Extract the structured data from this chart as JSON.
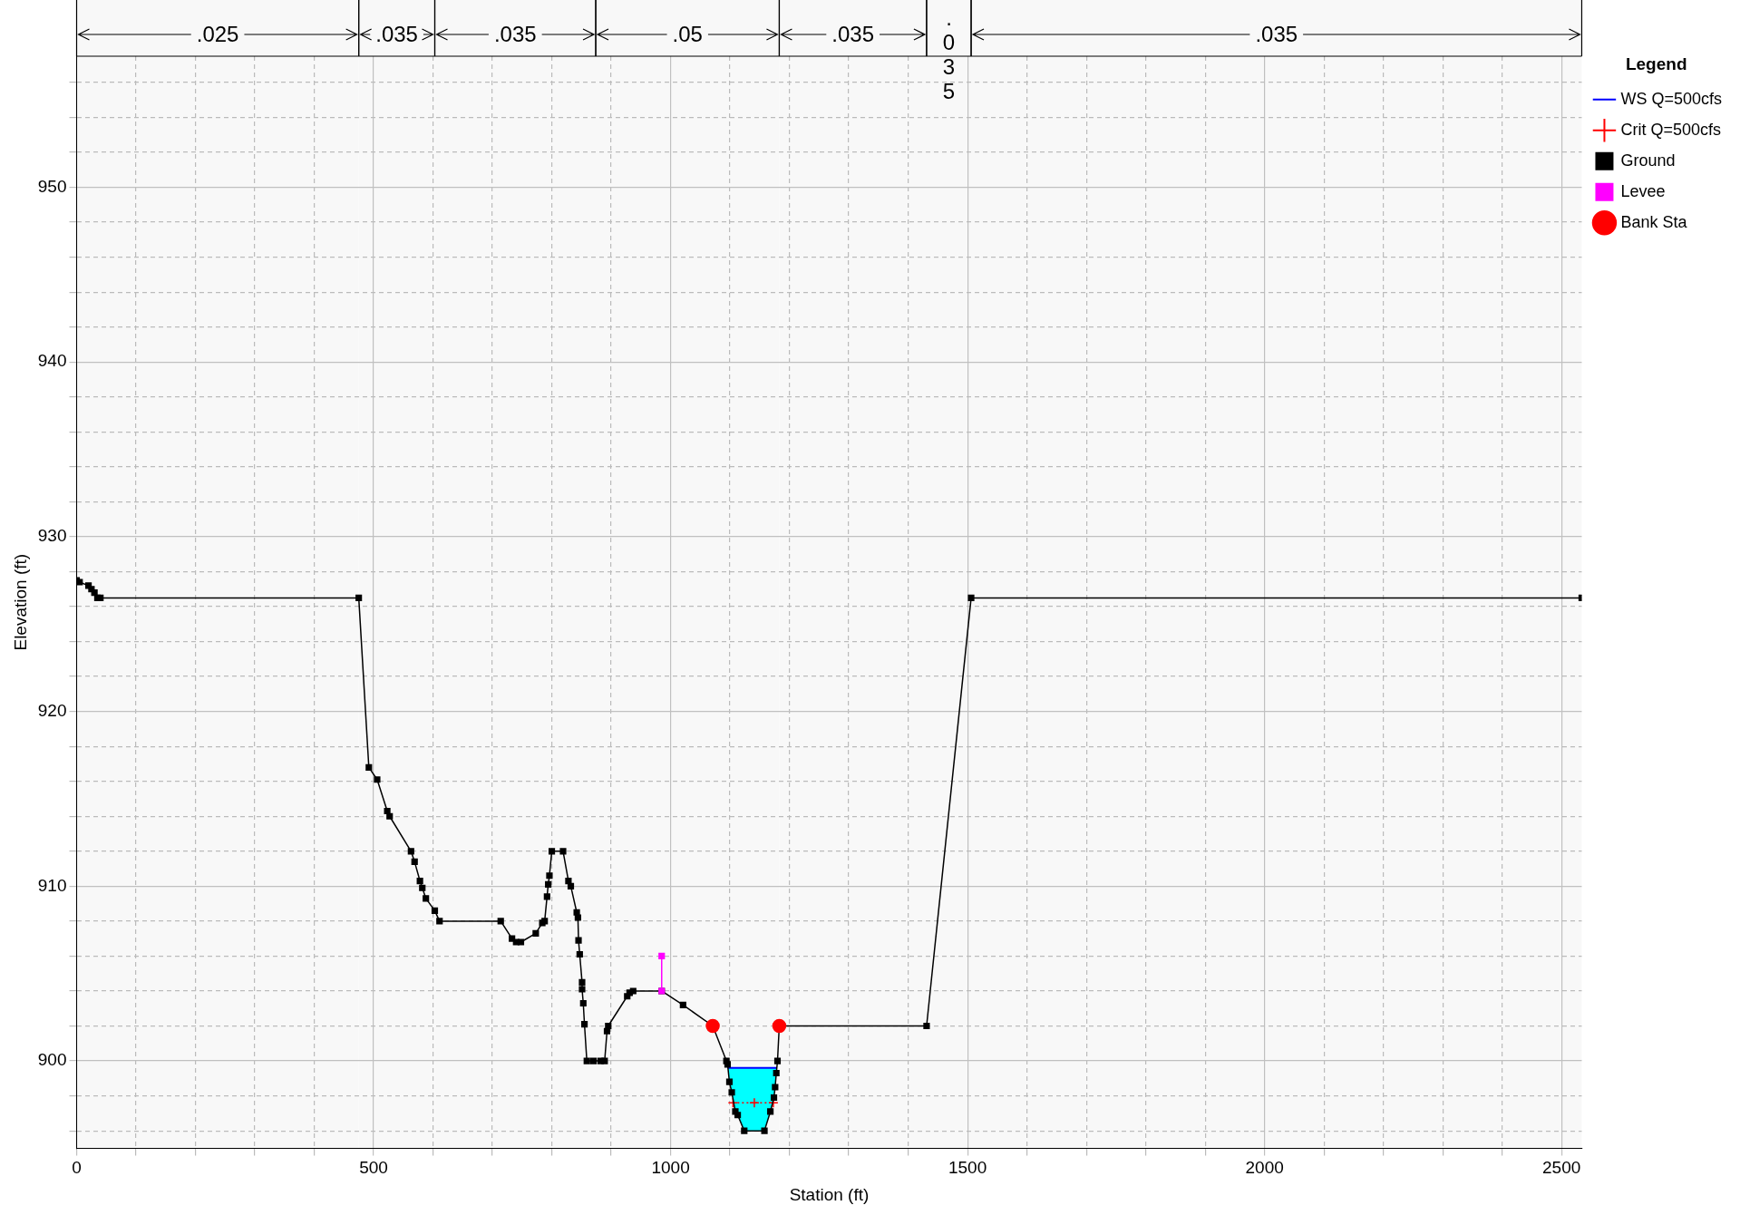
{
  "chart_data": {
    "type": "line",
    "xlabel": "Station (ft)",
    "ylabel": "Elevation (ft)",
    "legend_title": "Legend",
    "legend": "right",
    "grid": true,
    "xlim": [
      0,
      2534
    ],
    "ylim": [
      895,
      957.5
    ],
    "xticks": [
      0,
      {
        "value": 100,
        "label": null
      },
      {
        "value": 200,
        "label": null
      },
      {
        "value": 300,
        "label": null
      },
      {
        "value": 400,
        "label": null
      },
      500,
      {
        "value": 600,
        "label": null
      },
      {
        "value": 700,
        "label": null
      },
      {
        "value": 800,
        "label": null
      },
      {
        "value": 900,
        "label": null
      },
      1000,
      {
        "value": 1100,
        "label": null
      },
      {
        "value": 1200,
        "label": null
      },
      {
        "value": 1300,
        "label": null
      },
      {
        "value": 1400,
        "label": null
      },
      1500,
      {
        "value": 1600,
        "label": null
      },
      {
        "value": 1700,
        "label": null
      },
      {
        "value": 1800,
        "label": null
      },
      {
        "value": 1900,
        "label": null
      },
      2000,
      {
        "value": 2100,
        "label": null
      },
      {
        "value": 2200,
        "label": null
      },
      {
        "value": 2300,
        "label": null
      },
      {
        "value": 2400,
        "label": null
      },
      2500
    ],
    "yticks": [
      {
        "value": 896,
        "label": null
      },
      {
        "value": 898,
        "label": null
      },
      900,
      {
        "value": 902,
        "label": null
      },
      {
        "value": 904,
        "label": null
      },
      {
        "value": 906,
        "label": null
      },
      {
        "value": 908,
        "label": null
      },
      910,
      {
        "value": 912,
        "label": null
      },
      {
        "value": 914,
        "label": null
      },
      {
        "value": 916,
        "label": null
      },
      {
        "value": 918,
        "label": null
      },
      920,
      {
        "value": 922,
        "label": null
      },
      {
        "value": 924,
        "label": null
      },
      {
        "value": 926,
        "label": null
      },
      {
        "value": 928,
        "label": null
      },
      930,
      {
        "value": 932,
        "label": null
      },
      {
        "value": 934,
        "label": null
      },
      {
        "value": 936,
        "label": null
      },
      {
        "value": 938,
        "label": null
      },
      940,
      {
        "value": 942,
        "label": null
      },
      {
        "value": 944,
        "label": null
      },
      {
        "value": 946,
        "label": null
      },
      {
        "value": 948,
        "label": null
      },
      950,
      {
        "value": 952,
        "label": null
      },
      {
        "value": 954,
        "label": null
      },
      {
        "value": 956,
        "label": null
      }
    ],
    "bands": [
      {
        "axis": "x",
        "from": 0,
        "to": 475,
        "label": ".025",
        "color": "#f8f8f8"
      },
      {
        "axis": "x",
        "from": 475,
        "to": 603,
        "label": ".035",
        "color": "#f8f8f8"
      },
      {
        "axis": "x",
        "from": 603,
        "to": 874,
        "label": ".035",
        "color": "#f8f8f8"
      },
      {
        "axis": "x",
        "from": 874,
        "to": 1183,
        "label": ".05",
        "color": "#f8f8f8"
      },
      {
        "axis": "x",
        "from": 1183,
        "to": 1431,
        "label": ".035",
        "color": "#f8f8f8"
      },
      {
        "axis": "x",
        "from": 1431,
        "to": 1506,
        "label": ".035",
        "color": "#f8f8f8"
      },
      {
        "axis": "x",
        "from": 1506,
        "to": 2534,
        "label": ".035",
        "color": "#f8f8f8"
      }
    ],
    "series": [
      {
        "name": "WS Q=500cfs",
        "type": "line",
        "color": "#0000ff",
        "marker": "none",
        "x": [
          1097,
          1099,
          1103,
          1109,
          1113,
          1124,
          1158,
          1168,
          1174,
          1176,
          1178,
          1179
        ],
        "values": [
          899.6,
          899.6,
          899.6,
          899.6,
          899.6,
          899.6,
          899.6,
          899.6,
          899.6,
          899.6,
          899.6,
          899.6
        ],
        "lower": [
          899.5,
          898.8,
          898.2,
          897.1,
          896.9,
          896,
          896,
          897.1,
          897.9,
          898.5,
          899.3,
          899.6
        ],
        "upper": [
          899.6,
          899.6,
          899.6,
          899.6,
          899.6,
          899.6,
          899.6,
          899.6,
          899.6,
          899.6,
          899.6,
          899.6
        ]
      },
      {
        "name": "Crit Q=500cfs",
        "type": "line",
        "color": "#ff0000",
        "marker": "cross",
        "line_style": "dotted",
        "x": [
          1105,
          1141,
          1173
        ],
        "values": [
          897.6,
          897.6,
          897.6
        ]
      },
      {
        "name": "Ground",
        "type": "line",
        "color": "#000000",
        "marker": "square",
        "x": [
          0,
          5,
          20,
          25,
          30,
          35,
          40,
          475,
          492,
          506,
          523,
          527,
          563,
          569,
          578,
          582,
          588,
          603,
          611,
          714,
          733,
          740,
          748,
          773,
          784,
          788,
          792,
          794,
          796,
          800,
          819,
          828,
          832,
          842,
          844,
          845,
          847,
          851,
          851,
          853,
          855,
          859,
          870,
          882,
          889,
          893,
          895,
          927,
          931,
          937,
          985,
          1021,
          1071,
          1094,
          1096,
          1099,
          1103,
          1109,
          1113,
          1124,
          1158,
          1168,
          1174,
          1176,
          1178,
          1180,
          1183,
          1431,
          1506,
          2534
        ],
        "values": [
          927.5,
          927.4,
          927.2,
          927,
          926.8,
          926.5,
          926.5,
          926.5,
          916.8,
          916.1,
          914.3,
          914,
          912,
          911.4,
          910.3,
          909.9,
          909.3,
          908.6,
          908,
          908,
          907,
          906.8,
          906.8,
          907.3,
          907.9,
          908,
          909.4,
          910.1,
          910.6,
          912,
          912,
          910.3,
          910,
          908.5,
          908.2,
          906.9,
          906.1,
          904.5,
          904.1,
          903.3,
          902.1,
          900,
          900,
          900,
          900,
          901.7,
          902,
          903.7,
          903.9,
          904,
          904,
          903.2,
          902,
          900,
          899.8,
          898.8,
          898.2,
          897.1,
          896.9,
          896,
          896,
          897.1,
          897.9,
          898.5,
          899.3,
          900,
          902,
          902,
          926.5,
          926.5
        ]
      },
      {
        "name": "Levee",
        "type": "line",
        "color": "#ff00ff",
        "marker": "square",
        "x": [
          985,
          985
        ],
        "values": [
          906,
          904
        ]
      },
      {
        "name": "Bank Sta",
        "type": "scatter",
        "color": "#ff0000",
        "marker": "circle",
        "x": [
          1071,
          1183
        ],
        "values": [
          902,
          902
        ]
      }
    ]
  }
}
